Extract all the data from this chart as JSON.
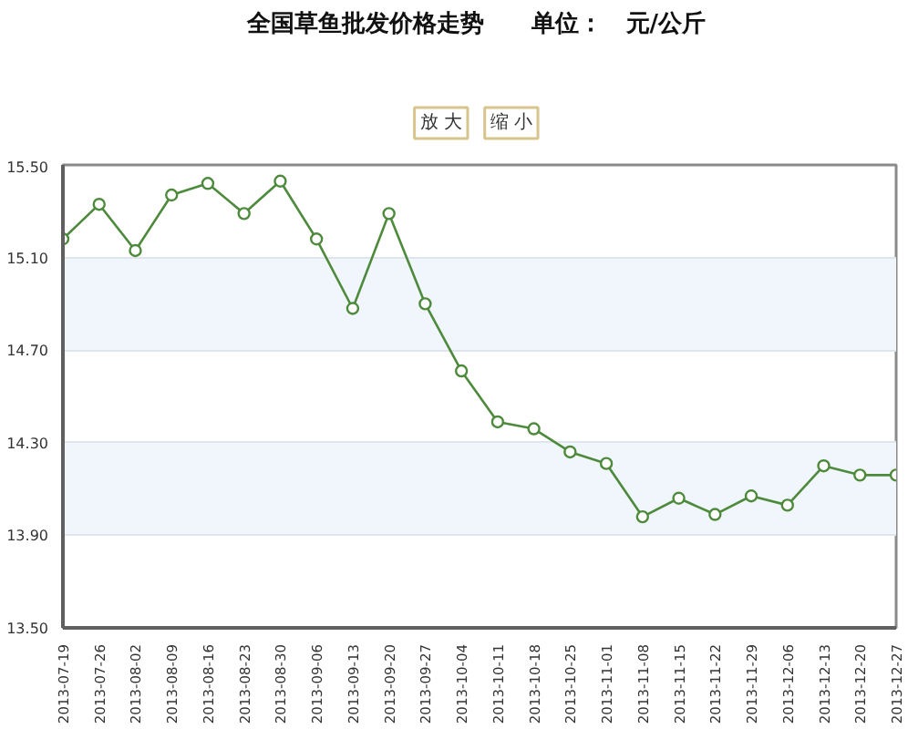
{
  "chart_data": {
    "type": "line",
    "title": "全国草鱼批发价格走势　　单位：　元/公斤",
    "annotations": [
      "放 大",
      "缩 小"
    ],
    "categories": [
      "2013-07-19",
      "2013-07-26",
      "2013-08-02",
      "2013-08-09",
      "2013-08-16",
      "2013-08-23",
      "2013-08-30",
      "2013-09-06",
      "2013-09-13",
      "2013-09-20",
      "2013-09-27",
      "2013-10-04",
      "2013-10-11",
      "2013-10-18",
      "2013-10-25",
      "2013-11-01",
      "2013-11-08",
      "2013-11-15",
      "2013-11-22",
      "2013-11-29",
      "2013-12-06",
      "2013-12-13",
      "2013-12-20",
      "2013-12-27"
    ],
    "series": [
      {
        "color": "#4d8a3c",
        "values": [
          15.18,
          15.33,
          15.13,
          15.37,
          15.42,
          15.29,
          15.43,
          15.18,
          14.88,
          15.29,
          14.9,
          14.61,
          14.39,
          14.36,
          14.26,
          14.21,
          13.98,
          14.06,
          13.99,
          14.07,
          14.03,
          14.2,
          14.16,
          14.16
        ]
      }
    ],
    "ylim": [
      13.5,
      15.5
    ],
    "yticks": [
      {
        "value": 13.5,
        "label": "13.50"
      },
      {
        "value": 13.9,
        "label": "13.90"
      },
      {
        "value": 14.3,
        "label": "14.30"
      },
      {
        "value": 14.7,
        "label": "14.70"
      },
      {
        "value": 15.1,
        "label": "15.10"
      },
      {
        "value": 15.5,
        "label": "15.50"
      }
    ],
    "grid": "y",
    "marker": "circle",
    "line_style": "solid"
  }
}
